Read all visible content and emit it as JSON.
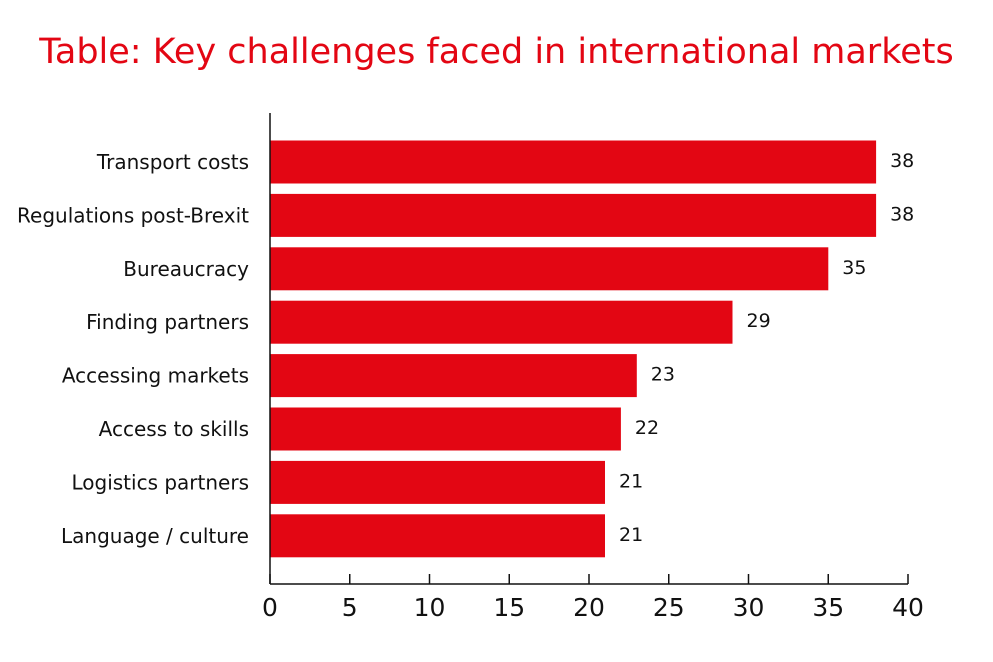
{
  "chart_data": {
    "type": "bar",
    "orientation": "horizontal",
    "title": "Table: Key challenges faced in international markets",
    "categories": [
      "Transport costs",
      "Regulations post-Brexit",
      "Bureaucracy",
      "Finding partners",
      "Accessing markets",
      "Access to skills",
      "Logistics partners",
      "Language / culture"
    ],
    "values": [
      38,
      38,
      35,
      29,
      23,
      22,
      21,
      21
    ],
    "xlim": [
      0,
      40
    ],
    "x_ticks": [
      0,
      5,
      10,
      15,
      20,
      25,
      30,
      35,
      40
    ],
    "data_labels": true,
    "grid": false,
    "legend": "none"
  },
  "colors": {
    "bar": "#e30613",
    "title": "#e30613",
    "axis": "#111111",
    "text": "#111111"
  }
}
